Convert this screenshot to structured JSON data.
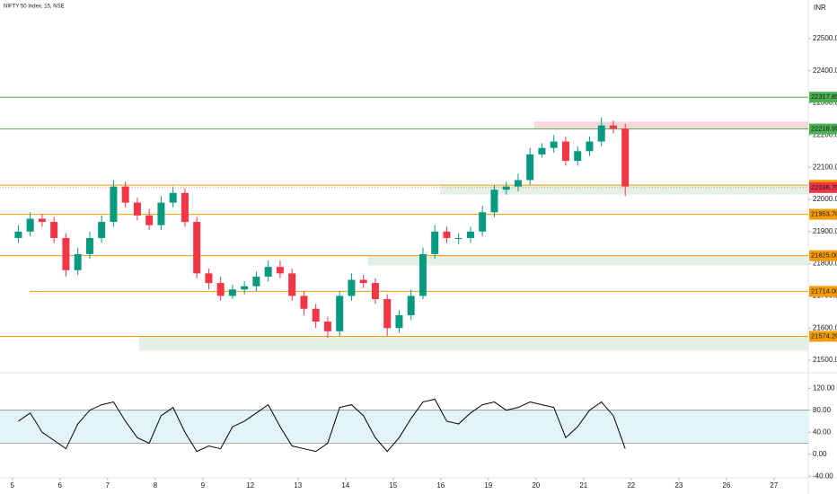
{
  "chart_data": {
    "type": "candlestick",
    "title": "NIFTY 50 Index, 15, NSE",
    "currency": "INR",
    "x": [
      0.125,
      0.375,
      0.625,
      0.875,
      1.125,
      1.375,
      1.625,
      1.875,
      2.125,
      2.375,
      2.625,
      2.875,
      3.125,
      3.375,
      3.625,
      3.875,
      4.125,
      4.375,
      4.625,
      4.875,
      5.125,
      5.375,
      5.625,
      5.875,
      6.125,
      6.375,
      6.625,
      6.875,
      7.125,
      7.375,
      7.625,
      7.875,
      8.125,
      8.375,
      8.625,
      8.875,
      9.125,
      9.375,
      9.625,
      9.875,
      10.125,
      10.375,
      10.625,
      10.875,
      11.125,
      11.375,
      11.625,
      11.875,
      12.125,
      12.375,
      12.625,
      12.875
    ],
    "open": [
      21880,
      21900,
      21940,
      21930,
      21880,
      21780,
      21830,
      21880,
      21930,
      22040,
      21990,
      21950,
      21920,
      21990,
      22020,
      21930,
      21770,
      21740,
      21700,
      21720,
      21730,
      21760,
      21790,
      21770,
      21700,
      21660,
      21620,
      21590,
      21700,
      21750,
      21740,
      21690,
      21600,
      21640,
      21700,
      21830,
      21900,
      21880,
      21880,
      21900,
      21960,
      22030,
      22040,
      22060,
      22140,
      22160,
      22180,
      22120,
      22150,
      22180,
      22230,
      22220
    ],
    "high": [
      21920,
      21960,
      21955,
      21945,
      21895,
      21850,
      21900,
      21950,
      22060,
      22055,
      22005,
      21970,
      22010,
      22040,
      22035,
      21945,
      21785,
      21760,
      21735,
      21745,
      21775,
      21810,
      21810,
      21785,
      21715,
      21675,
      21635,
      21715,
      21770,
      21765,
      21755,
      21705,
      21655,
      21720,
      21850,
      21920,
      21915,
      21895,
      21915,
      21980,
      22045,
      22055,
      22080,
      22160,
      22175,
      22200,
      22195,
      22165,
      22195,
      22255,
      22245,
      22235
    ],
    "low": [
      21865,
      21885,
      21915,
      21865,
      21760,
      21765,
      21815,
      21865,
      21915,
      21975,
      21935,
      21905,
      21905,
      21975,
      21915,
      21755,
      21720,
      21685,
      21690,
      21705,
      21715,
      21745,
      21755,
      21685,
      21640,
      21600,
      21570,
      21575,
      21685,
      21725,
      21675,
      21575,
      21585,
      21625,
      21690,
      21815,
      21865,
      21860,
      21865,
      21885,
      21945,
      22015,
      22025,
      22045,
      22130,
      22145,
      22105,
      22105,
      22135,
      22165,
      22205,
      22010
    ],
    "close": [
      21900,
      21940,
      21930,
      21880,
      21780,
      21830,
      21880,
      21930,
      22040,
      21990,
      21950,
      21920,
      21990,
      22020,
      21930,
      21770,
      21740,
      21700,
      21720,
      21730,
      21760,
      21790,
      21770,
      21700,
      21660,
      21620,
      21590,
      21700,
      21750,
      21740,
      21690,
      21600,
      21640,
      21700,
      21830,
      21900,
      21880,
      21880,
      21900,
      21960,
      22030,
      22040,
      22060,
      22140,
      22160,
      22180,
      22120,
      22150,
      22180,
      22230,
      22220,
      22040
    ],
    "up_color": "#089981",
    "down_color": "#f23645",
    "xlim": [
      -0.26,
      16.72
    ],
    "xticks": [
      {
        "value": 0,
        "label": "5"
      },
      {
        "value": 1,
        "label": "6"
      },
      {
        "value": 2,
        "label": "7"
      },
      {
        "value": 3,
        "label": "8"
      },
      {
        "value": 4,
        "label": "9"
      },
      {
        "value": 5,
        "label": "12"
      },
      {
        "value": 6,
        "label": "13"
      },
      {
        "value": 7,
        "label": "14"
      },
      {
        "value": 8,
        "label": "15"
      },
      {
        "value": 9,
        "label": "16"
      },
      {
        "value": 10,
        "label": "19"
      },
      {
        "value": 11,
        "label": "20"
      },
      {
        "value": 12,
        "label": "21"
      },
      {
        "value": 13,
        "label": "22"
      },
      {
        "value": 14,
        "label": "23"
      },
      {
        "value": 15,
        "label": "26"
      },
      {
        "value": 16,
        "label": "27"
      }
    ],
    "ylim": [
      21475,
      22620
    ],
    "yticks": [
      {
        "value": 21500,
        "label": "21500.00"
      },
      {
        "value": 21600,
        "label": "21600.00"
      },
      {
        "value": 21700,
        "label": "21700.00"
      },
      {
        "value": 21800,
        "label": "21800.00"
      },
      {
        "value": 21900,
        "label": "21900.00"
      },
      {
        "value": 22000,
        "label": "22000.00"
      },
      {
        "value": 22100,
        "label": "22100.00"
      },
      {
        "value": 22200,
        "label": "22200.00"
      },
      {
        "value": 22300,
        "label": "22300.00"
      },
      {
        "value": 22400,
        "label": "22400.00"
      },
      {
        "value": 22500,
        "label": "22500.00"
      }
    ],
    "zones": [
      {
        "from": 10.96,
        "low": 22219,
        "high": 22242,
        "color": "#f8d7dc"
      },
      {
        "from": 8.98,
        "low": 22015,
        "high": 22044,
        "color": "#e3f0e4"
      },
      {
        "from": 7.47,
        "low": 21795,
        "high": 21825,
        "color": "#e3f0e4"
      },
      {
        "from": 2.66,
        "low": 21530,
        "high": 21574,
        "color": "#e3f0e4"
      }
    ],
    "levels": [
      {
        "value": 22317.85,
        "label": "22317.85",
        "color": "#4caf50",
        "from": -0.26
      },
      {
        "value": 22218.95,
        "label": "22218.95",
        "color": "#4caf50",
        "from": -0.26
      },
      {
        "value": 22044.2,
        "label": "22044.20",
        "color": "#f59d00",
        "from": -0.26
      },
      {
        "value": 21953.7,
        "label": "21953.70",
        "color": "#f59d00",
        "from": -0.26
      },
      {
        "value": 21825,
        "label": "21825.00",
        "color": "#f59d00",
        "from": -0.26
      },
      {
        "value": 21714,
        "label": "21714.00",
        "color": "#f59d00",
        "from": 0.36
      },
      {
        "value": 21574.2,
        "label": "21574.20",
        "color": "#f59d00",
        "from": -0.26
      }
    ],
    "last_price": {
      "value": 22036.7,
      "label": "22036.70",
      "color": "#f23645"
    },
    "oscillator": {
      "values": [
        60,
        75,
        40,
        25,
        10,
        55,
        80,
        90,
        95,
        60,
        30,
        20,
        70,
        85,
        40,
        5,
        15,
        10,
        50,
        60,
        75,
        90,
        50,
        15,
        10,
        5,
        20,
        85,
        90,
        70,
        30,
        5,
        30,
        65,
        95,
        100,
        60,
        55,
        75,
        90,
        95,
        80,
        85,
        95,
        90,
        85,
        30,
        50,
        80,
        95,
        70,
        10
      ],
      "color": "#000000",
      "bands": [
        20,
        80
      ],
      "band_color": "#e3f4f8",
      "y2lim": [
        -43,
        140
      ],
      "y2ticks": [
        {
          "value": -40,
          "label": "-40.00"
        },
        {
          "value": 0,
          "label": "0.00"
        },
        {
          "value": 40,
          "label": "40.00"
        },
        {
          "value": 80,
          "label": "80.00"
        },
        {
          "value": 120,
          "label": "120.00"
        }
      ]
    }
  }
}
